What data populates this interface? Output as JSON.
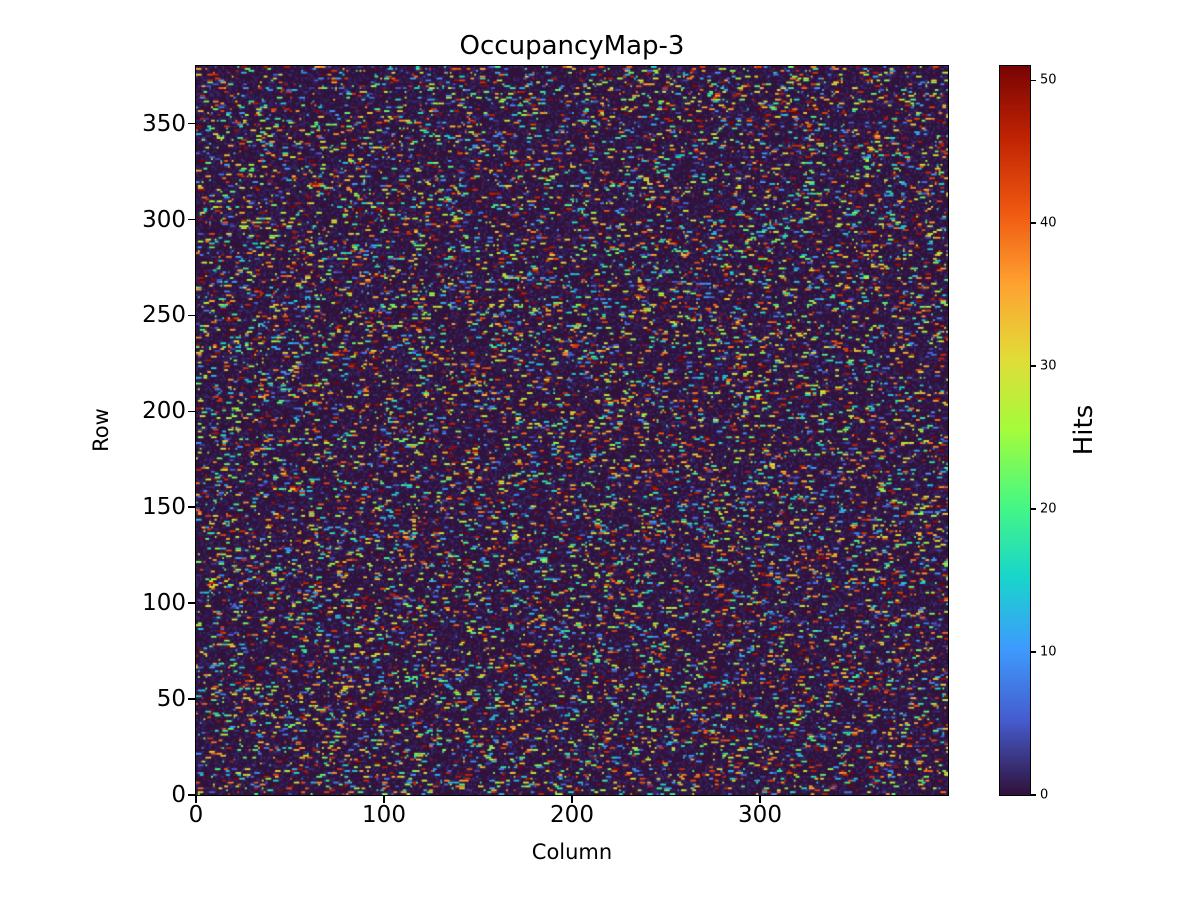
{
  "chart_data": {
    "type": "heatmap",
    "title": "OccupancyMap-3",
    "xlabel": "Column",
    "ylabel": "Row",
    "x_range": [
      0,
      400
    ],
    "y_range": [
      0,
      380
    ],
    "grid": {
      "columns": 400,
      "rows": 380
    },
    "x_ticks": [
      "0",
      "100",
      "200",
      "300"
    ],
    "y_ticks": [
      "0",
      "50",
      "100",
      "150",
      "200",
      "250",
      "300",
      "350"
    ],
    "colorbar": {
      "label": "Hits",
      "min": 0,
      "max": 51,
      "ticks": [
        "0",
        "10",
        "20",
        "30",
        "40",
        "50"
      ],
      "position": "right"
    },
    "colormap": {
      "name": "turbo",
      "low_hex": "#30123b",
      "high_hex": "#7a0403",
      "stops": [
        [
          48,
          18,
          59
        ],
        [
          69,
          91,
          205
        ],
        [
          62,
          155,
          254
        ],
        [
          24,
          214,
          203
        ],
        [
          72,
          248,
          130
        ],
        [
          164,
          252,
          59
        ],
        [
          226,
          220,
          56
        ],
        [
          254,
          163,
          49
        ],
        [
          239,
          89,
          17
        ],
        [
          194,
          36,
          3
        ],
        [
          122,
          4,
          3
        ]
      ]
    },
    "grid_lines": "off",
    "legend": "none",
    "data_description": "Sparse random occupancy map: dark near-zero background with short horizontal clusters of 1-51 hits scattered uniformly across a 400x380 pixel matrix.",
    "generator": {
      "seed": 3,
      "hit_density": 0.1,
      "background_noise_density": 0.35,
      "max_dash_cells": 3
    }
  }
}
